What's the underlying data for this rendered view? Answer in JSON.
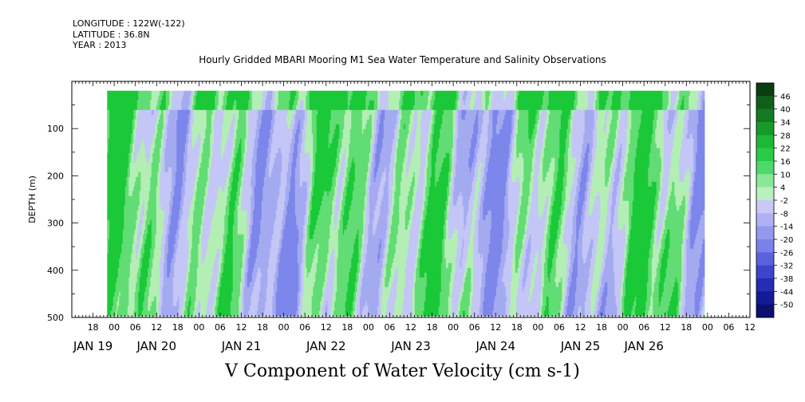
{
  "header": {
    "longitude": "LONGITUDE : 122W(-122)",
    "latitude": "LATITUDE : 36.8N",
    "year": "YEAR : 2013"
  },
  "chart_data": {
    "type": "heatmap",
    "title": "Hourly Gridded MBARI Mooring M1 Sea Water Temperature and Salinity Observations",
    "variable_title": "V Component of Water Velocity (cm s-1)",
    "ylabel": "DEPTH (m)",
    "xlabel": "",
    "ylim": [
      500,
      0
    ],
    "yticks": [
      100,
      200,
      300,
      400,
      500
    ],
    "xlim_hours": [
      -12,
      180
    ],
    "hour_ticks": [
      {
        "h": -6,
        "label": "18"
      },
      {
        "h": 0,
        "label": "00"
      },
      {
        "h": 6,
        "label": "06"
      },
      {
        "h": 12,
        "label": "12"
      },
      {
        "h": 18,
        "label": "18"
      },
      {
        "h": 24,
        "label": "00"
      },
      {
        "h": 30,
        "label": "06"
      },
      {
        "h": 36,
        "label": "12"
      },
      {
        "h": 42,
        "label": "18"
      },
      {
        "h": 48,
        "label": "00"
      },
      {
        "h": 54,
        "label": "06"
      },
      {
        "h": 60,
        "label": "12"
      },
      {
        "h": 66,
        "label": "18"
      },
      {
        "h": 72,
        "label": "00"
      },
      {
        "h": 78,
        "label": "06"
      },
      {
        "h": 84,
        "label": "12"
      },
      {
        "h": 90,
        "label": "18"
      },
      {
        "h": 96,
        "label": "00"
      },
      {
        "h": 102,
        "label": "06"
      },
      {
        "h": 108,
        "label": "12"
      },
      {
        "h": 114,
        "label": "18"
      },
      {
        "h": 120,
        "label": "00"
      },
      {
        "h": 126,
        "label": "06"
      },
      {
        "h": 132,
        "label": "12"
      },
      {
        "h": 138,
        "label": "18"
      },
      {
        "h": 144,
        "label": "00"
      },
      {
        "h": 150,
        "label": "06"
      },
      {
        "h": 156,
        "label": "12"
      },
      {
        "h": 162,
        "label": "18"
      },
      {
        "h": 168,
        "label": "00"
      },
      {
        "h": 174,
        "label": "06"
      },
      {
        "h": 180,
        "label": "12"
      }
    ],
    "day_labels": [
      {
        "h": -6,
        "label": "JAN 19"
      },
      {
        "h": 12,
        "label": "JAN 20"
      },
      {
        "h": 36,
        "label": "JAN 21"
      },
      {
        "h": 60,
        "label": "JAN 22"
      },
      {
        "h": 84,
        "label": "JAN 23"
      },
      {
        "h": 108,
        "label": "JAN 24"
      },
      {
        "h": 132,
        "label": "JAN 25"
      },
      {
        "h": 150,
        "label": "JAN 26"
      }
    ],
    "data_extent": {
      "hour_start": -2,
      "hour_end": 167,
      "depth_top": 20,
      "depth_bottom": 490
    },
    "colorbar": {
      "levels": [
        46,
        40,
        34,
        28,
        22,
        16,
        10,
        4,
        -2,
        -8,
        -14,
        -20,
        -26,
        -32,
        -38,
        -44,
        -50
      ],
      "colors": [
        "#0a3d12",
        "#0f5f1a",
        "#137a22",
        "#169a2a",
        "#1cb836",
        "#28cc46",
        "#4fd86a",
        "#88e897",
        "#b9f0bd",
        "#c9c8f7",
        "#aeb1f2",
        "#9599ee",
        "#7b81e8",
        "#5a62dd",
        "#3c45cc",
        "#252db4",
        "#141a93",
        "#0b0f6e"
      ]
    },
    "pattern": {
      "pos_color_low": "#b3eeb5",
      "pos_color_mid": "#62dc74",
      "pos_color_high": "#1ac838",
      "neg_color_low": "#c3c6f6",
      "neg_color_mid": "#a4abf1",
      "neg_color_high": "#7d86ea"
    }
  }
}
